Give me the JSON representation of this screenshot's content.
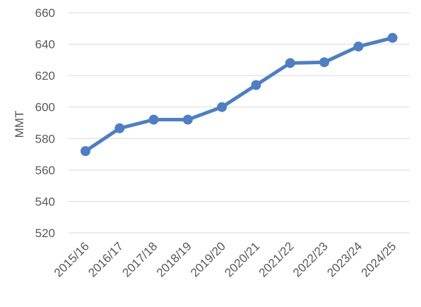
{
  "chart_data": {
    "type": "line",
    "title": "",
    "xlabel": "",
    "ylabel": "MMT",
    "categories": [
      "2015/16",
      "2016/17",
      "2017/18",
      "2018/19",
      "2019/20",
      "2020/21",
      "2021/22",
      "2022/23",
      "2023/24",
      "2024/25"
    ],
    "series": [
      {
        "values": [
          572,
          586.5,
          592,
          592,
          600,
          614,
          628,
          628.5,
          638.5,
          644
        ]
      }
    ],
    "ylim": [
      520,
      660
    ],
    "yticks": [
      520,
      540,
      560,
      580,
      600,
      620,
      640,
      660
    ],
    "grid": true,
    "legend": false,
    "line_color": "#4F7FC0",
    "grid_color": "#D9D9D9",
    "text_color": "#595959"
  }
}
